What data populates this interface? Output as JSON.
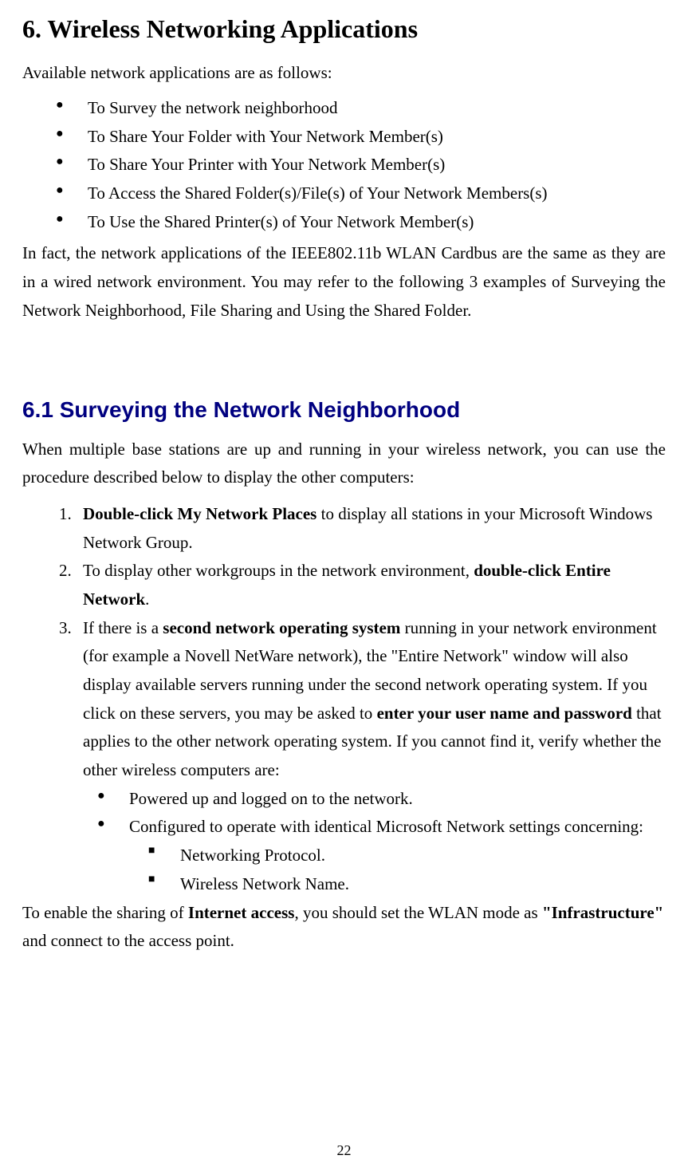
{
  "heading": "6. Wireless Networking Applications",
  "intro": "Available network applications are as follows:",
  "bullets": [
    "To Survey the network neighborhood",
    "To Share Your Folder with Your Network Member(s)",
    "To Share Your Printer with Your Network Member(s)",
    "To Access the Shared Folder(s)/File(s) of Your Network Members(s)",
    "To Use the Shared Printer(s) of Your Network Member(s)"
  ],
  "body_para": "In fact, the network applications of the IEEE802.11b WLAN Cardbus are the same as they are in a wired network environment.  You may refer to the following 3 examples of Surveying the Network Neighborhood, File Sharing and Using the Shared Folder.",
  "subheading": "6.1 Surveying the Network Neighborhood",
  "sub_intro": "When multiple base stations are up and running in your wireless network, you can use the procedure described below to display the other computers:",
  "steps": {
    "s1": {
      "num": "1.",
      "bold1": "Double-click My Network Places",
      "rest": " to display all stations in your Microsoft Windows Network Group."
    },
    "s2": {
      "num": "2.",
      "pre": "To display other workgroups in the network environment, ",
      "bold": "double-click Entire Network",
      "post": "."
    },
    "s3": {
      "num": "3.",
      "t1": "If there is a ",
      "b1": "second network operating system",
      "t2": " running in your network environment (for example a Novell NetWare network), the \"Entire Network\" window will also display available servers running under the second network operating system. If you click on these servers, you may be asked to ",
      "b2": "enter your user name and password",
      "t3": " that applies to the other network operating system. If you cannot find it, verify whether the other wireless computers are:"
    }
  },
  "sub_bullets": [
    "Powered up and logged on to the network.",
    "Configured to operate with identical Microsoft Network settings concerning:"
  ],
  "square_bullets": [
    "Networking Protocol.",
    "Wireless Network Name."
  ],
  "closing": {
    "t1": "To enable the sharing of ",
    "b1": "Internet access",
    "t2": ", you should set the WLAN mode as ",
    "b2": "\"Infrastructure\"",
    "t3": " and connect to the access point."
  },
  "page_number": "22",
  "colors": {
    "heading_sub": "#000080",
    "text": "#000000",
    "background": "#ffffff"
  },
  "fonts": {
    "body": "Times New Roman",
    "subheading": "Arial"
  }
}
